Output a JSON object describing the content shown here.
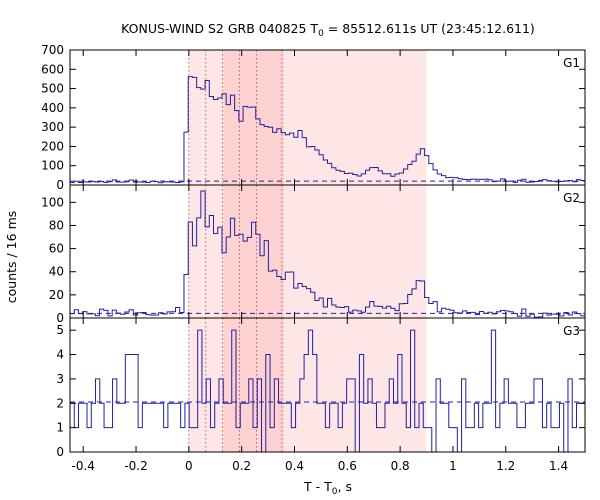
{
  "chart_data": {
    "type": "line",
    "subtype": "step-histogram",
    "title": "KONUS-WIND S2 GRB 040825 T",
    "title_sub": "0",
    "title_rest": " = 85512.611s UT (23:45:12.611)",
    "xlabel": "T - T",
    "xlabel_sub": "0",
    "xlabel_rest": ", s",
    "ylabel": "counts / 16 ms",
    "xlim": [
      -0.45,
      1.5
    ],
    "xticks": [
      -0.4,
      -0.2,
      0,
      0.2,
      0.4,
      0.6,
      0.8,
      1,
      1.2,
      1.4
    ],
    "xtick_labels": [
      "-0.4",
      "-0.2",
      "0",
      "0.2",
      "0.4",
      "0.6",
      "0.8",
      "1",
      "1.2",
      "1.4"
    ],
    "bin_width": 0.016,
    "shaded_intervals": [
      {
        "start": 0.0,
        "end": 0.9,
        "color": "#ffe6e6"
      },
      {
        "start": 0.13,
        "end": 0.36,
        "color": "#ffd2d2"
      }
    ],
    "vlines_dotted": [
      0.0,
      0.064,
      0.128,
      0.192,
      0.256,
      0.352
    ],
    "panels": [
      {
        "name": "G1",
        "ylim": [
          0,
          700
        ],
        "yticks": [
          0,
          100,
          200,
          300,
          400,
          500,
          600,
          700
        ],
        "ytick_labels": [
          "0",
          "100",
          "200",
          "300",
          "400",
          "500",
          "600",
          "700"
        ],
        "background": 20,
        "knots": [
          [
            -0.45,
            18
          ],
          [
            -0.02,
            18
          ],
          [
            0,
            530
          ],
          [
            0.03,
            560
          ],
          [
            0.05,
            480
          ],
          [
            0.1,
            470
          ],
          [
            0.15,
            430
          ],
          [
            0.22,
            400
          ],
          [
            0.27,
            350
          ],
          [
            0.3,
            300
          ],
          [
            0.36,
            260
          ],
          [
            0.4,
            270
          ],
          [
            0.45,
            220
          ],
          [
            0.5,
            160
          ],
          [
            0.55,
            100
          ],
          [
            0.6,
            60
          ],
          [
            0.65,
            50
          ],
          [
            0.7,
            90
          ],
          [
            0.73,
            70
          ],
          [
            0.78,
            40
          ],
          [
            0.82,
            80
          ],
          [
            0.86,
            130
          ],
          [
            0.88,
            200
          ],
          [
            0.9,
            150
          ],
          [
            0.93,
            80
          ],
          [
            0.97,
            40
          ],
          [
            1.02,
            30
          ],
          [
            1.2,
            22
          ],
          [
            1.5,
            20
          ]
        ],
        "noise": 0.07,
        "seed": 11
      },
      {
        "name": "G2",
        "ylim": [
          0,
          115
        ],
        "yticks": [
          0,
          20,
          40,
          60,
          80,
          100
        ],
        "ytick_labels": [
          "0",
          "20",
          "40",
          "60",
          "80",
          "100"
        ],
        "background": 4,
        "knots": [
          [
            -0.45,
            5
          ],
          [
            -0.02,
            5
          ],
          [
            0,
            70
          ],
          [
            0.04,
            88
          ],
          [
            0.08,
            85
          ],
          [
            0.12,
            75
          ],
          [
            0.2,
            68
          ],
          [
            0.25,
            65
          ],
          [
            0.3,
            50
          ],
          [
            0.35,
            40
          ],
          [
            0.4,
            35
          ],
          [
            0.45,
            25
          ],
          [
            0.5,
            15
          ],
          [
            0.55,
            10
          ],
          [
            0.6,
            8
          ],
          [
            0.65,
            8
          ],
          [
            0.7,
            16
          ],
          [
            0.73,
            10
          ],
          [
            0.78,
            9
          ],
          [
            0.85,
            18
          ],
          [
            0.88,
            35
          ],
          [
            0.9,
            20
          ],
          [
            0.95,
            8
          ],
          [
            1.05,
            5
          ],
          [
            1.5,
            3
          ]
        ],
        "noise": 0.16,
        "seed": 23
      },
      {
        "name": "G3",
        "ylim": [
          0,
          5.5
        ],
        "yticks": [
          0,
          1,
          2,
          3,
          4,
          5
        ],
        "ytick_labels": [
          "0",
          "1",
          "2",
          "3",
          "4",
          "5"
        ],
        "background": 2.05,
        "values": [
          2,
          1,
          2,
          2,
          1,
          2,
          3,
          2,
          1,
          1,
          3,
          2,
          2,
          4,
          4,
          4,
          1,
          2,
          2,
          2,
          2,
          2,
          1,
          2,
          2,
          2,
          1,
          2,
          1,
          1,
          5,
          2,
          3,
          1,
          2,
          3,
          2,
          2,
          5,
          1,
          2,
          2,
          3,
          1,
          3,
          0,
          4,
          1,
          3,
          2,
          2,
          2,
          1,
          2,
          3,
          4,
          5,
          4,
          2,
          2,
          1,
          2,
          2,
          1,
          2,
          3,
          3,
          0,
          4,
          2,
          3,
          2,
          1,
          1,
          2,
          3,
          2,
          4,
          2,
          1,
          5,
          1,
          2,
          1,
          1,
          0,
          3,
          2,
          2,
          1,
          1,
          0,
          3,
          1,
          1,
          2,
          1,
          2,
          2,
          5,
          1,
          2,
          3,
          2,
          2,
          1,
          1,
          2,
          2,
          3,
          3,
          1,
          2,
          1,
          1,
          2,
          0,
          3,
          1,
          2,
          2
        ]
      }
    ]
  }
}
